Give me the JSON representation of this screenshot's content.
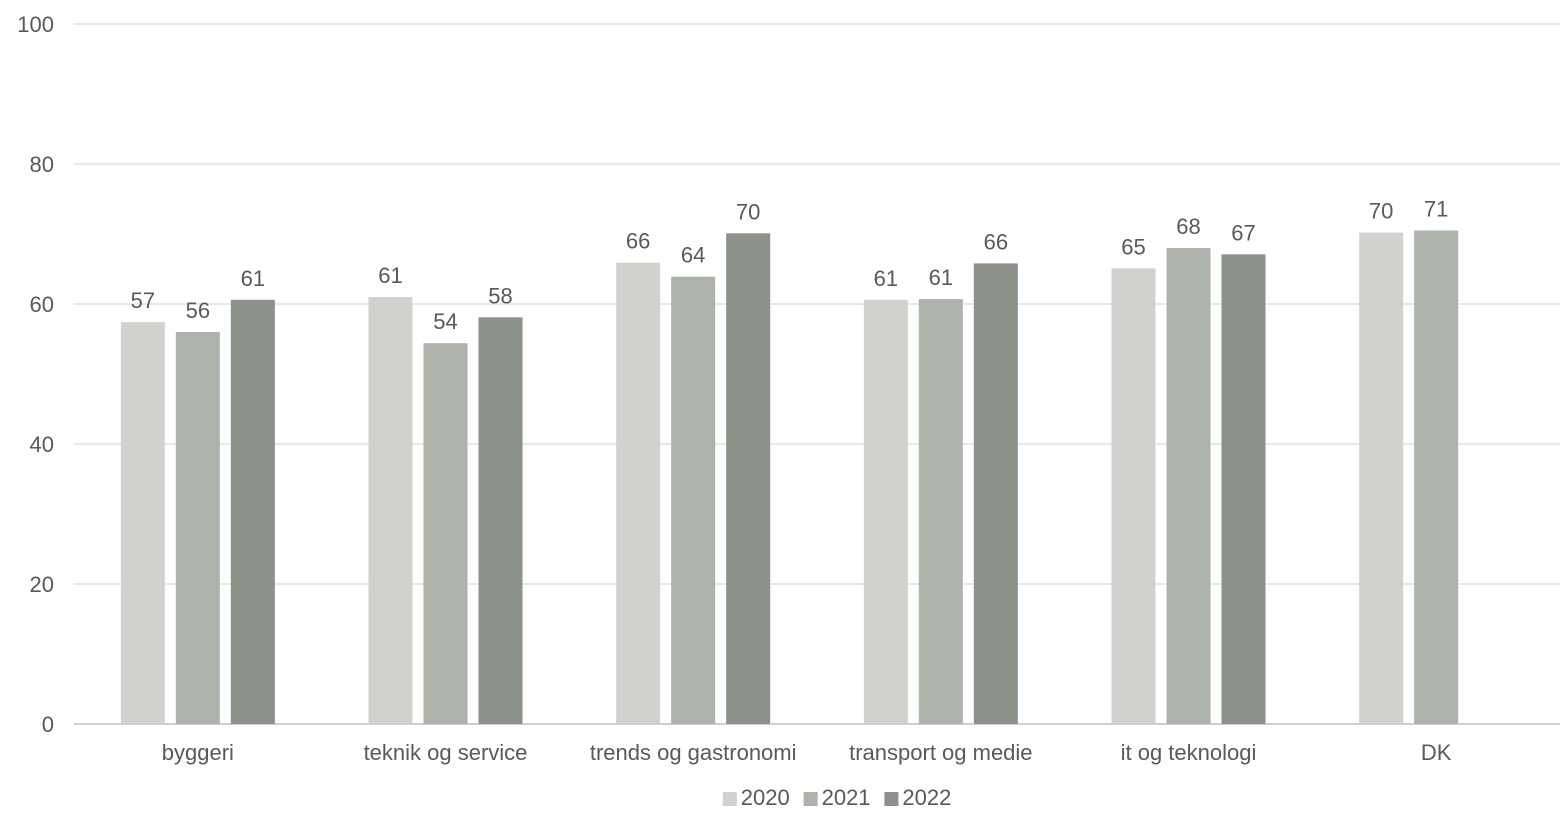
{
  "chart_data": {
    "type": "bar",
    "title": "",
    "xlabel": "",
    "ylabel": "",
    "ylim": [
      0,
      100
    ],
    "yticks": [
      0,
      20,
      40,
      60,
      80,
      100
    ],
    "grid": true,
    "legend_position": "bottom",
    "categories": [
      "byggeri",
      "teknik og service",
      "trends og gastronomi",
      "transport og medie",
      "it og teknologi",
      "DK"
    ],
    "series": [
      {
        "name": "2020",
        "color": "#d0d2ce",
        "values": [
          57.4,
          61.0,
          65.9,
          60.6,
          65.1,
          70.2
        ],
        "labels": [
          "57",
          "61",
          "66",
          "61",
          "65",
          "70"
        ]
      },
      {
        "name": "2021",
        "color": "#adb2aa",
        "values": [
          56.0,
          54.4,
          63.9,
          60.7,
          68.0,
          70.5
        ],
        "labels": [
          "56",
          "54",
          "64",
          "61",
          "68",
          "71"
        ]
      },
      {
        "name": "2022",
        "color": "#8c918a",
        "values": [
          60.6,
          58.1,
          70.1,
          65.8,
          67.1,
          null
        ],
        "labels": [
          "61",
          "58",
          "70",
          "66",
          "67",
          null
        ]
      }
    ]
  }
}
